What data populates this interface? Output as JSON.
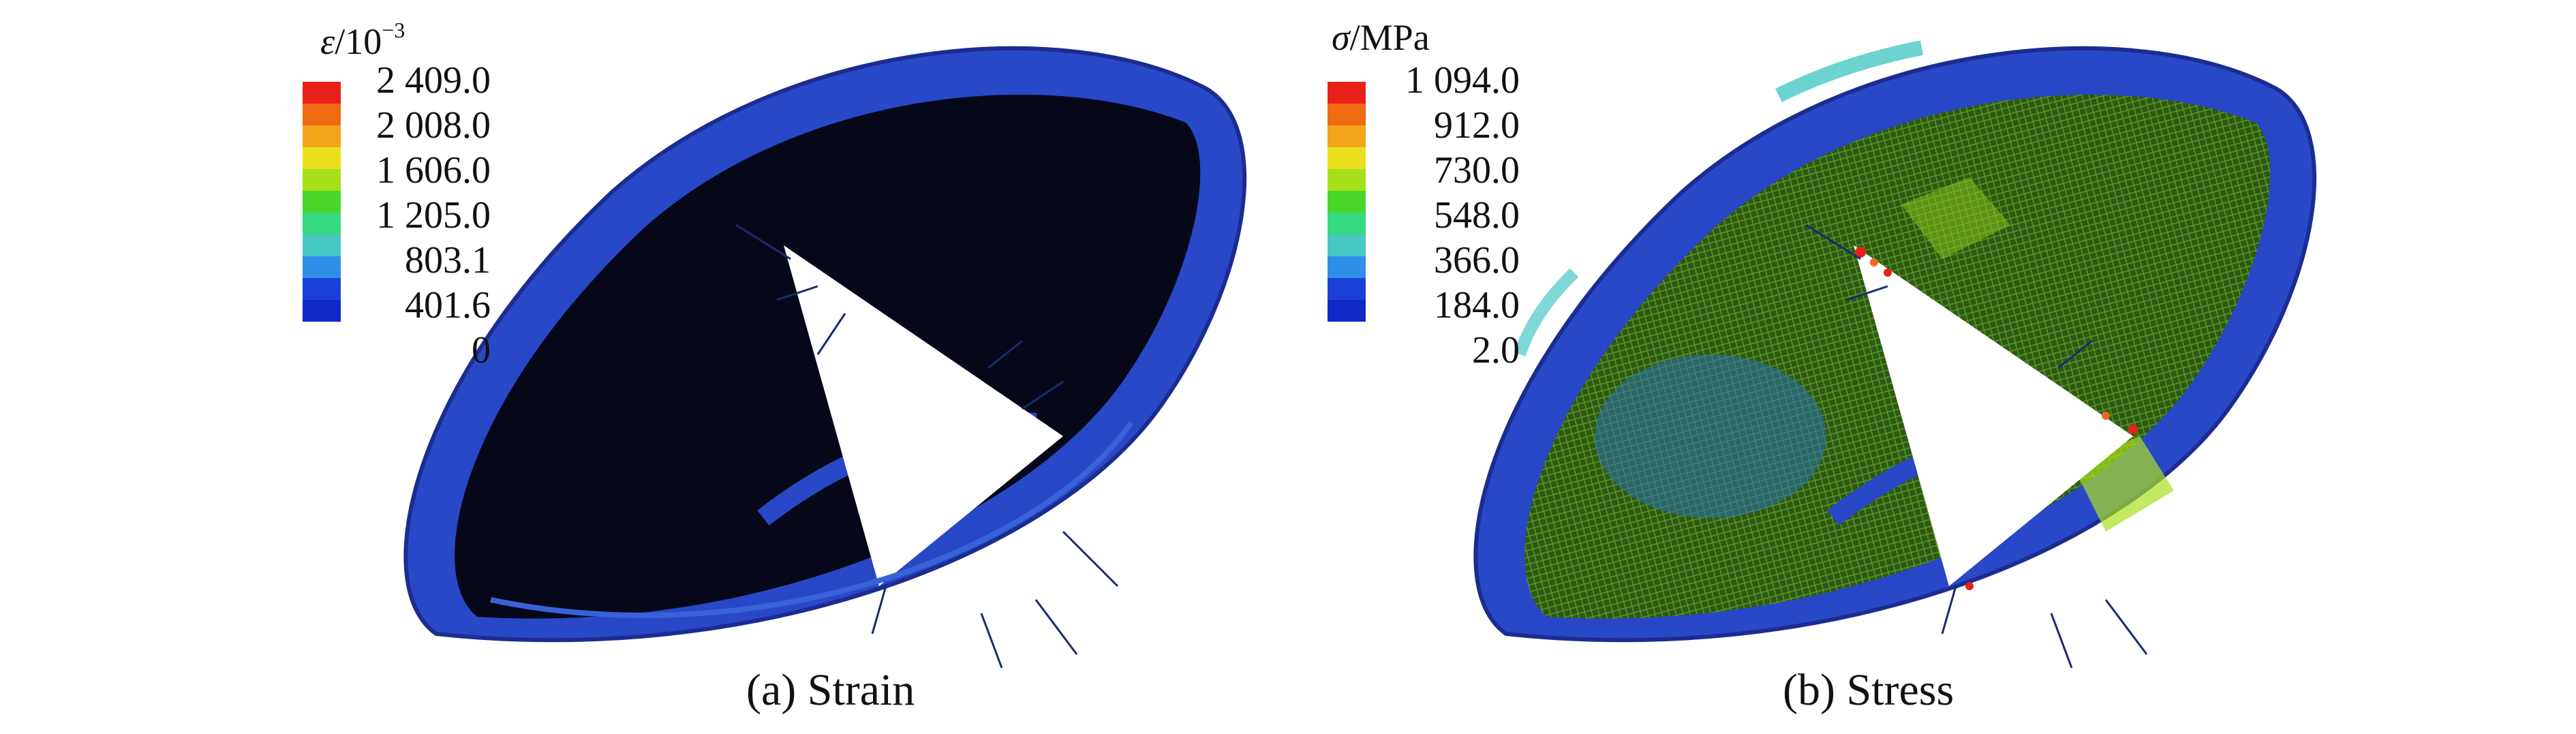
{
  "panels": [
    {
      "caption": "(a) Strain",
      "legend": {
        "symbol": "ε",
        "unit": "/10",
        "exponent": "−3",
        "labels": [
          "2 409.0",
          "2 008.0",
          "1 606.0",
          "1 205.0",
          "803.1",
          "401.6",
          "0"
        ]
      }
    },
    {
      "caption": "(b) Stress",
      "legend": {
        "symbol": "σ",
        "unit": "/MPa",
        "exponent": "",
        "labels": [
          "1 094.0",
          "912.0",
          "730.0",
          "548.0",
          "366.0",
          "184.0",
          "2.0"
        ]
      }
    }
  ],
  "legend_colors": [
    "#e82018",
    "#f06a14",
    "#f2a41a",
    "#e8e01c",
    "#a6e018",
    "#48d62a",
    "#36d882",
    "#48c8c4",
    "#2e8ee8",
    "#1a40d8",
    "#1028c8"
  ],
  "model_colors": {
    "rim": "#2848c8",
    "rim_edge": "#1c2c90",
    "inner_face": "#06081a",
    "stress_fill": "#3a6a18",
    "stress_highlight": "#a8e020",
    "stress_blue": "#2a70b0"
  }
}
